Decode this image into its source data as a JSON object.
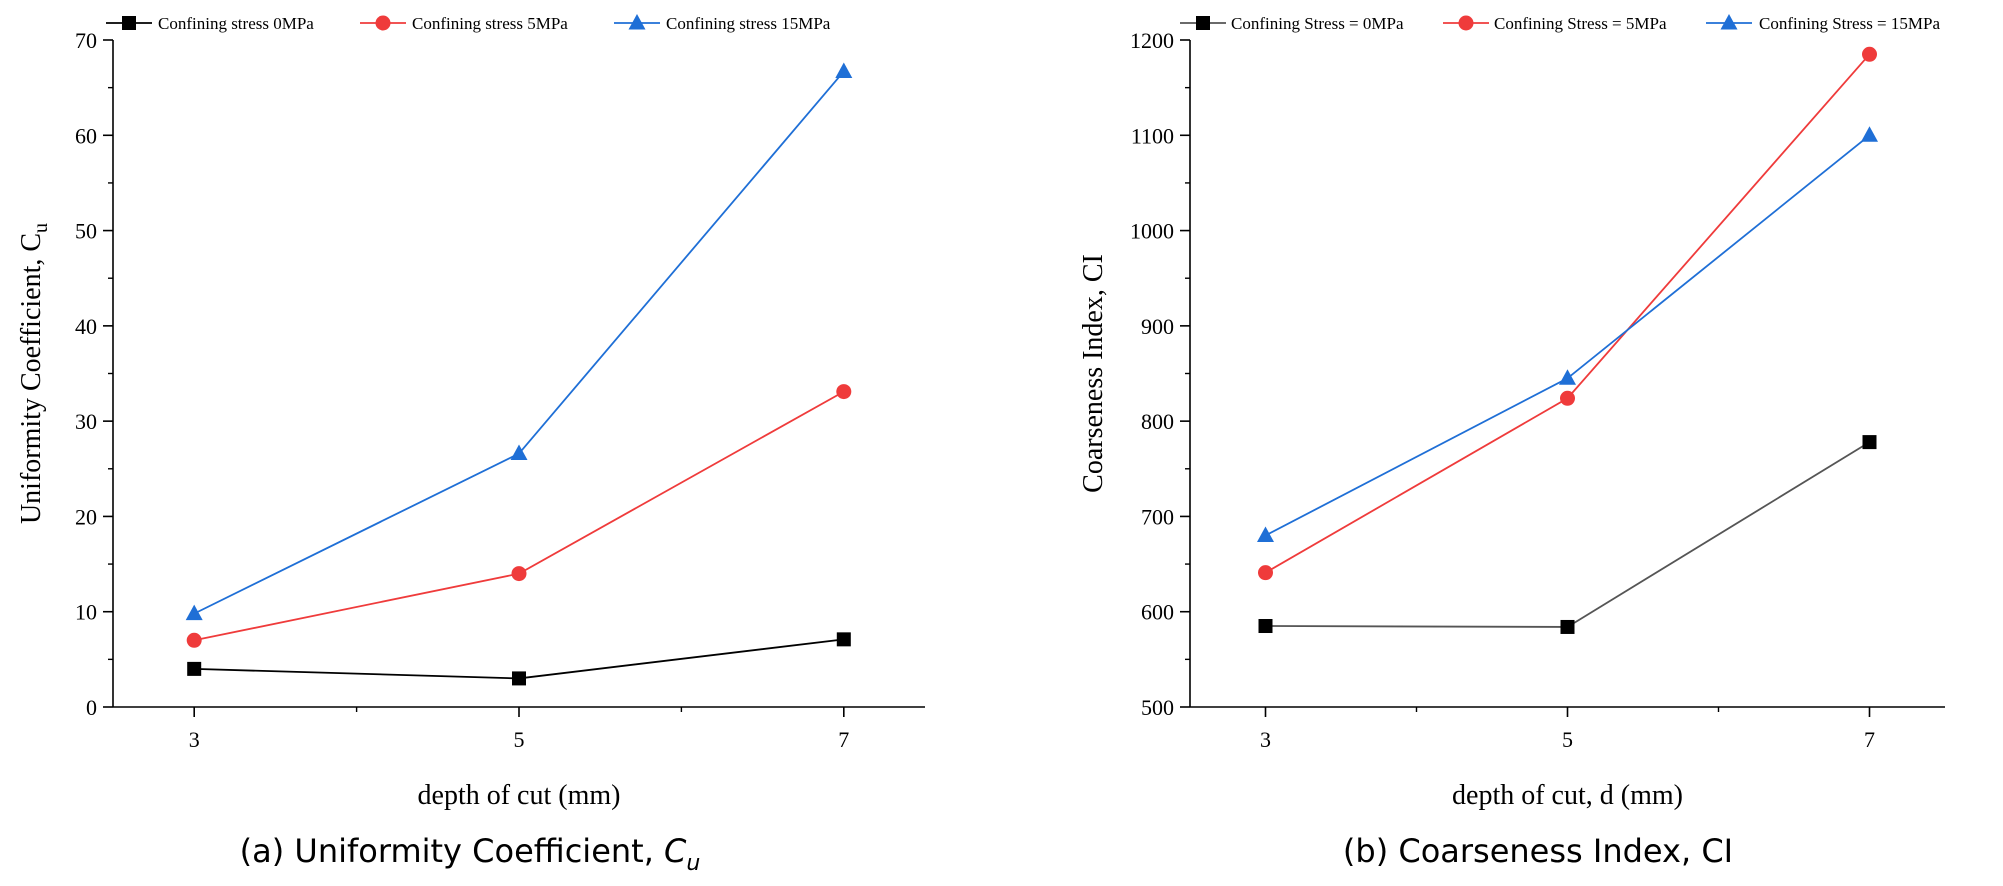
{
  "chart_data": [
    {
      "type": "line",
      "caption": {
        "prefix": "(a) Uniformity Coefficient, ",
        "symbol": "C",
        "sub": "u"
      },
      "xlabel": "depth of cut (mm)",
      "ylabel": {
        "text": "Uniformity Coefficient, C",
        "sub": "u"
      },
      "x": [
        3,
        5,
        7
      ],
      "xticks": [
        "3",
        "5",
        "7"
      ],
      "xlim": [
        2.5,
        7.5
      ],
      "ylim": [
        0,
        70
      ],
      "yticks": [
        0,
        10,
        20,
        30,
        40,
        50,
        60,
        70
      ],
      "grid": false,
      "legend_position": "top",
      "series": [
        {
          "name": "Confining stress 0MPa",
          "values": [
            4.0,
            3.0,
            7.1
          ],
          "color": "#000000",
          "line_color": "#000000",
          "marker": "square"
        },
        {
          "name": "Confining stress 5MPa",
          "values": [
            7.0,
            14.0,
            33.1
          ],
          "color": "#ef3b3b",
          "line_color": "#ef3b3b",
          "marker": "circle"
        },
        {
          "name": "Confining stress 15MPa",
          "values": [
            9.8,
            26.6,
            66.7
          ],
          "color": "#1f6fd6",
          "line_color": "#1f6fd6",
          "marker": "triangle"
        }
      ]
    },
    {
      "type": "line",
      "caption": {
        "prefix": "(b) Coarseness Index, CI"
      },
      "xlabel": "depth of cut, d (mm)",
      "ylabel": {
        "text": "Coarseness Index, CI"
      },
      "x": [
        3,
        5,
        7
      ],
      "xticks": [
        "3",
        "5",
        "7"
      ],
      "xlim": [
        2.5,
        7.5
      ],
      "ylim": [
        500,
        1200
      ],
      "yticks": [
        500,
        600,
        700,
        800,
        900,
        1000,
        1100,
        1200
      ],
      "grid": false,
      "legend_position": "top",
      "series": [
        {
          "name": "Confining Stress = 0MPa",
          "values": [
            585,
            584,
            778
          ],
          "color": "#000000",
          "line_color": "#555555",
          "marker": "square"
        },
        {
          "name": "Confining Stress = 5MPa",
          "values": [
            641,
            824,
            1185
          ],
          "color": "#ef3b3b",
          "line_color": "#ef3b3b",
          "marker": "circle"
        },
        {
          "name": "Confining Stress = 15MPa",
          "values": [
            680,
            845,
            1100
          ],
          "color": "#1f6fd6",
          "line_color": "#1f6fd6",
          "marker": "triangle"
        }
      ]
    }
  ]
}
